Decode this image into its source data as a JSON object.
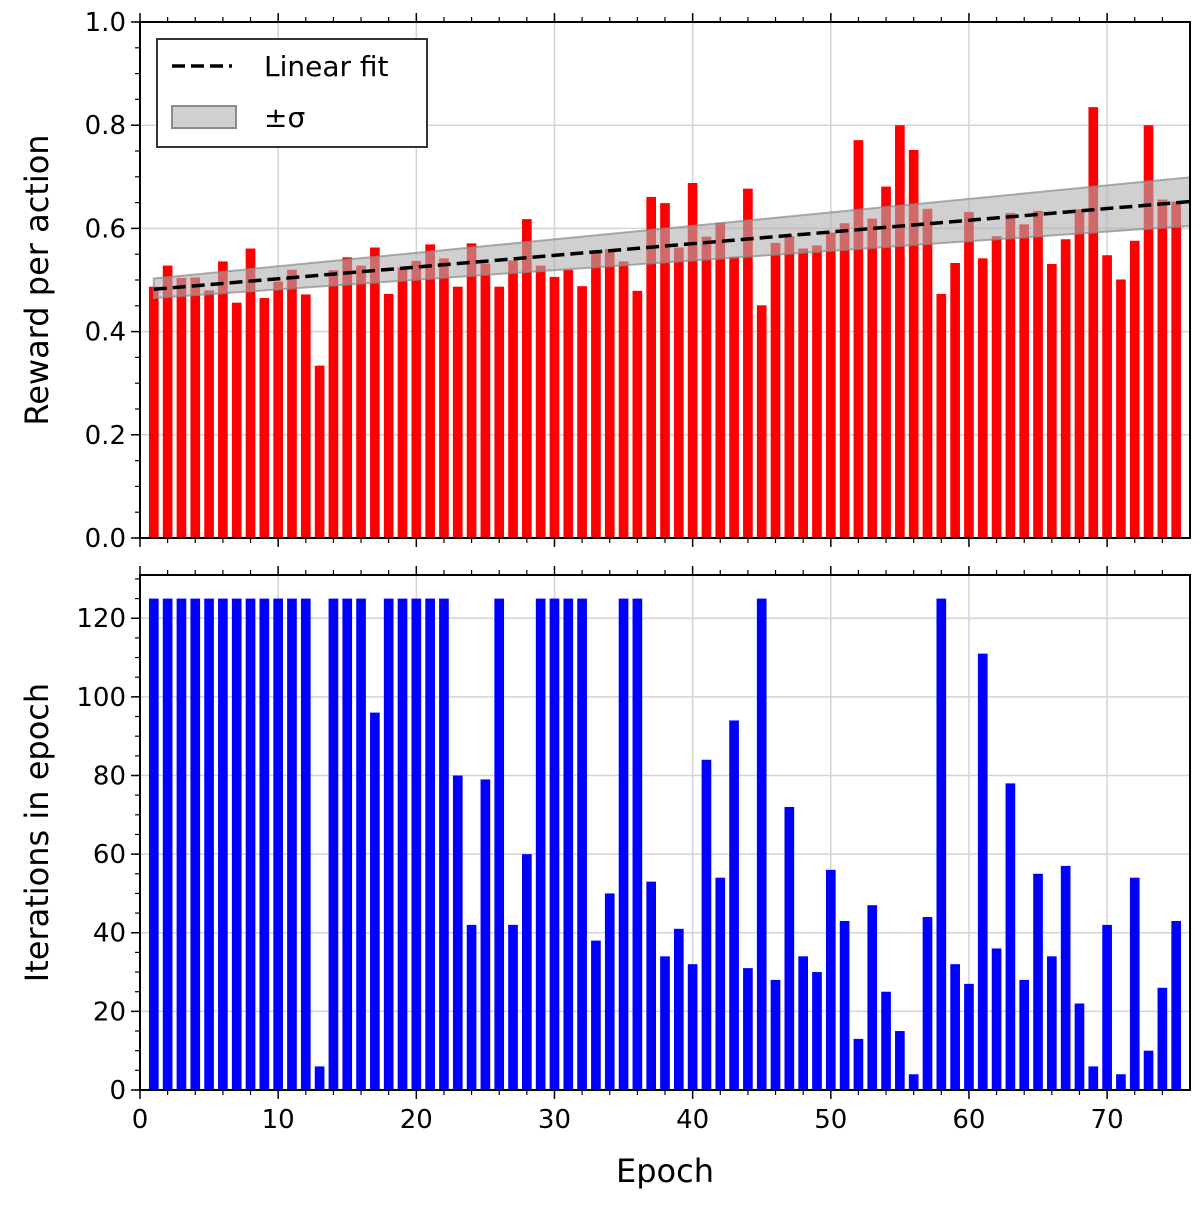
{
  "chart_data": [
    {
      "type": "bar",
      "panel": "top",
      "xlabel": "",
      "ylabel": "Reward per action",
      "xlim": [
        0,
        76
      ],
      "ylim": [
        0,
        1.0
      ],
      "yticks": [
        0.0,
        0.2,
        0.4,
        0.6,
        0.8,
        1.0
      ],
      "ytick_labels": [
        "0.0",
        "0.2",
        "0.4",
        "0.6",
        "0.8",
        "1.0"
      ],
      "grid": true,
      "legend_position": "top-left",
      "bar_color": "#ff0000",
      "x": [
        1,
        2,
        3,
        4,
        5,
        6,
        7,
        8,
        9,
        10,
        11,
        12,
        13,
        14,
        15,
        16,
        17,
        18,
        19,
        20,
        21,
        22,
        23,
        24,
        25,
        26,
        27,
        28,
        29,
        30,
        31,
        32,
        33,
        34,
        35,
        36,
        37,
        38,
        39,
        40,
        41,
        42,
        43,
        44,
        45,
        46,
        47,
        48,
        49,
        50,
        51,
        52,
        53,
        54,
        55,
        56,
        57,
        58,
        59,
        60,
        61,
        62,
        63,
        64,
        65,
        66,
        67,
        68,
        69,
        70,
        71,
        72,
        73,
        74,
        75
      ],
      "values": [
        0.487,
        0.528,
        0.504,
        0.505,
        0.48,
        0.536,
        0.456,
        0.561,
        0.465,
        0.497,
        0.52,
        0.472,
        0.334,
        0.519,
        0.544,
        0.528,
        0.563,
        0.473,
        0.524,
        0.537,
        0.569,
        0.542,
        0.487,
        0.571,
        0.532,
        0.487,
        0.538,
        0.618,
        0.528,
        0.506,
        0.52,
        0.488,
        0.556,
        0.56,
        0.536,
        0.479,
        0.661,
        0.649,
        0.563,
        0.688,
        0.584,
        0.611,
        0.545,
        0.677,
        0.451,
        0.572,
        0.585,
        0.561,
        0.567,
        0.592,
        0.61,
        0.771,
        0.619,
        0.681,
        0.8,
        0.752,
        0.638,
        0.473,
        0.533,
        0.632,
        0.542,
        0.585,
        0.63,
        0.608,
        0.634,
        0.531,
        0.579,
        0.637,
        0.835,
        0.548,
        0.501,
        0.576,
        0.8,
        0.656,
        0.652
      ],
      "fit": {
        "name": "Linear fit",
        "style": "dashed",
        "color": "#000000",
        "x": [
          1,
          76
        ],
        "y": [
          0.482,
          0.652
        ]
      },
      "band": {
        "name": "±σ",
        "color": "#b0b0b0",
        "lower": [
          0.465,
          0.605
        ],
        "upper": [
          0.503,
          0.699
        ],
        "x": [
          1,
          76
        ]
      },
      "legend": [
        "Linear fit",
        "±σ"
      ]
    },
    {
      "type": "bar",
      "panel": "bottom",
      "xlabel": "Epoch",
      "ylabel": "Iterations in epoch",
      "xlim": [
        0,
        76
      ],
      "ylim": [
        0,
        131
      ],
      "xticks": [
        0,
        10,
        20,
        30,
        40,
        50,
        60,
        70
      ],
      "xtick_labels": [
        "0",
        "10",
        "20",
        "30",
        "40",
        "50",
        "60",
        "70"
      ],
      "yticks": [
        0,
        20,
        40,
        60,
        80,
        100,
        120
      ],
      "ytick_labels": [
        "0",
        "20",
        "40",
        "60",
        "80",
        "100",
        "120"
      ],
      "grid": true,
      "bar_color": "#0000ff",
      "x": [
        1,
        2,
        3,
        4,
        5,
        6,
        7,
        8,
        9,
        10,
        11,
        12,
        13,
        14,
        15,
        16,
        17,
        18,
        19,
        20,
        21,
        22,
        23,
        24,
        25,
        26,
        27,
        28,
        29,
        30,
        31,
        32,
        33,
        34,
        35,
        36,
        37,
        38,
        39,
        40,
        41,
        42,
        43,
        44,
        45,
        46,
        47,
        48,
        49,
        50,
        51,
        52,
        53,
        54,
        55,
        56,
        57,
        58,
        59,
        60,
        61,
        62,
        63,
        64,
        65,
        66,
        67,
        68,
        69,
        70,
        71,
        72,
        73,
        74,
        75
      ],
      "values": [
        125,
        125,
        125,
        125,
        125,
        125,
        125,
        125,
        125,
        125,
        125,
        125,
        6,
        125,
        125,
        125,
        96,
        125,
        125,
        125,
        125,
        125,
        80,
        42,
        79,
        125,
        42,
        60,
        125,
        125,
        125,
        125,
        38,
        50,
        125,
        125,
        53,
        34,
        41,
        32,
        84,
        54,
        94,
        31,
        125,
        28,
        72,
        34,
        30,
        56,
        43,
        13,
        47,
        25,
        15,
        4,
        44,
        125,
        32,
        27,
        111,
        36,
        78,
        28,
        55,
        34,
        57,
        22,
        6,
        42,
        4,
        54,
        10,
        26,
        43
      ]
    }
  ]
}
